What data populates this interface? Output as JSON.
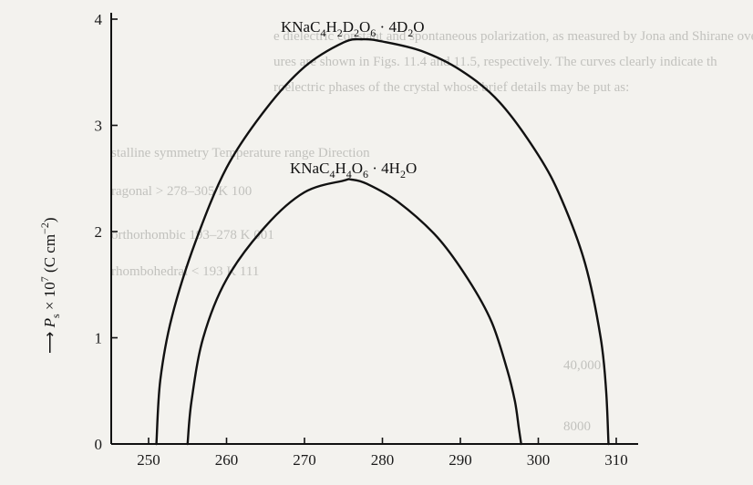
{
  "chart_data": {
    "type": "line",
    "title": "",
    "xlabel": "",
    "ylabel": "P_s × 10^7 (C cm^-2)",
    "ylabel_parts": {
      "arrow": "⟶",
      "symbol": "P",
      "subscript": "s",
      "times": " × 10",
      "exponent": "7",
      "unit_open": " (C cm",
      "unit_exponent": "−2",
      "unit_close": ")"
    },
    "xlim": [
      245,
      316
    ],
    "ylim": [
      0,
      4.1
    ],
    "x_ticks": [
      250,
      260,
      270,
      280,
      290,
      300,
      310
    ],
    "y_ticks": [
      0,
      1,
      2,
      3,
      4
    ],
    "grid": false,
    "legend": "none",
    "series": [
      {
        "name_parts": [
          "KNaC",
          "4",
          "H",
          "2",
          "D",
          "2",
          "O",
          "6",
          " · 4D",
          "2",
          "O"
        ],
        "name": "KNaC4H2D2O6 · 4D2O",
        "x": [
          251.0,
          251.5,
          253.0,
          256.0,
          260.0,
          265.0,
          270.0,
          275.0,
          277.5,
          280.0,
          285.0,
          290.0,
          295.0,
          300.0,
          303.0,
          306.0,
          308.0,
          308.7,
          309.0
        ],
        "y": [
          0.0,
          0.6,
          1.2,
          1.9,
          2.6,
          3.15,
          3.55,
          3.78,
          3.81,
          3.79,
          3.7,
          3.52,
          3.22,
          2.72,
          2.3,
          1.7,
          1.0,
          0.5,
          0.0
        ]
      },
      {
        "name_parts": [
          "KNaC",
          "4",
          "H",
          "4",
          "O",
          "6",
          " · 4H",
          "2",
          "O"
        ],
        "name": "KNaC4H4O6 · 4H2O",
        "x": [
          255.0,
          255.5,
          257.0,
          260.0,
          265.0,
          270.0,
          275.0,
          276.0,
          278.0,
          282.0,
          287.0,
          291.0,
          294.0,
          296.0,
          297.0,
          297.5,
          297.8
        ],
        "y": [
          0.0,
          0.4,
          1.0,
          1.55,
          2.05,
          2.37,
          2.48,
          2.49,
          2.45,
          2.28,
          1.95,
          1.55,
          1.15,
          0.7,
          0.4,
          0.15,
          0.0
        ]
      }
    ],
    "background_text": [
      "e dielectric constant and spontaneous polarization, as measured by Jona and Shirane over",
      "ures are shown in Figs. 11.4 and 11.5, respectively. The curves clearly indicate th",
      "roelectric phases of the crystal whose brief details may be put as:",
      "stalline symmetry     Temperature range      Direction",
      "ragonal          > 278–305 K              100",
      "orthorhombic          193–278 K              001",
      "rhombohedral          < 193 K                111",
      "40,000",
      "8000"
    ]
  }
}
